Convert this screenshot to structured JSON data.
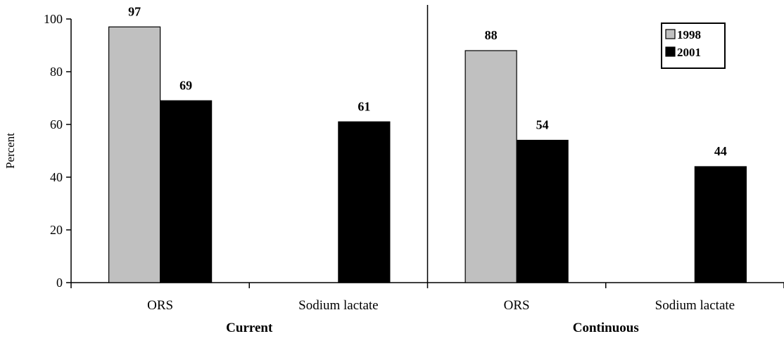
{
  "chart_data": {
    "type": "bar",
    "title": "",
    "xlabel": "",
    "ylabel": "Percent",
    "ylim": [
      0,
      100
    ],
    "yticks": [
      0,
      20,
      40,
      60,
      80,
      100
    ],
    "grid": false,
    "legend_position": "top-right",
    "groups": [
      {
        "label": "Current",
        "categories": [
          "ORS",
          "Sodium lactate"
        ]
      },
      {
        "label": "Continuous",
        "categories": [
          "ORS",
          "Sodium lactate"
        ]
      }
    ],
    "series": [
      {
        "name": "1998",
        "color": "#c0c0c0",
        "values": [
          97,
          null,
          88,
          null
        ]
      },
      {
        "name": "2001",
        "color": "#000000",
        "values": [
          69,
          61,
          54,
          44
        ]
      }
    ]
  }
}
